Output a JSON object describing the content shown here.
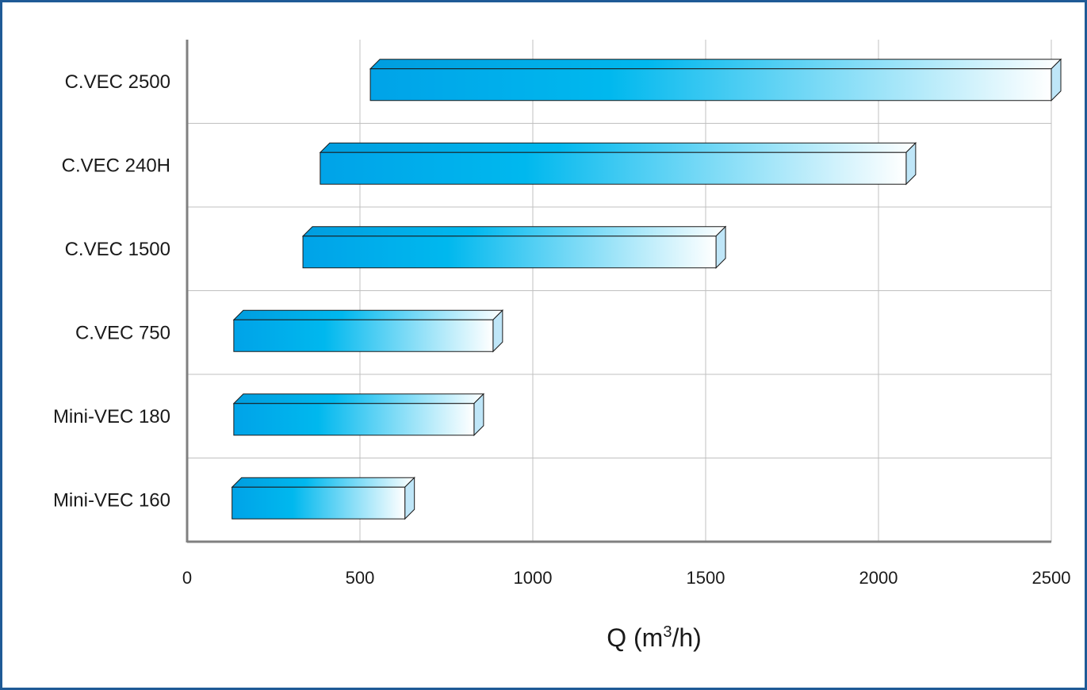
{
  "chart_data": {
    "type": "bar",
    "orientation": "horizontal",
    "range_bars": true,
    "categories": [
      "C.VEC 2500",
      "C.VEC 240H",
      "C.VEC 1500",
      "C.VEC 750",
      "Mini-VEC 180",
      "Mini-VEC 160"
    ],
    "ranges": [
      {
        "name": "C.VEC 2500",
        "min": 530,
        "max": 2500
      },
      {
        "name": "C.VEC 240H",
        "min": 385,
        "max": 2080
      },
      {
        "name": "C.VEC 1500",
        "min": 335,
        "max": 1530
      },
      {
        "name": "C.VEC 750",
        "min": 135,
        "max": 885
      },
      {
        "name": "Mini-VEC 180",
        "min": 135,
        "max": 830
      },
      {
        "name": "Mini-VEC 160",
        "min": 130,
        "max": 630
      }
    ],
    "xlim": [
      0,
      2500
    ],
    "xticks": [
      0,
      500,
      1000,
      1500,
      2000,
      2500
    ],
    "xlabel_main": "Q (m",
    "xlabel_sup": "3",
    "xlabel_tail": "/h)",
    "ylabel": "",
    "title": "",
    "grid": true,
    "legend": "none",
    "colors": {
      "bar_start": "#00a3e8",
      "bar_mid": "#00b8ee",
      "bar_end": "#ffffff",
      "bar_top": "#009ddf",
      "bar_side": "#bfe6f8",
      "frame": "#1f5a96",
      "grid": "#c0c0c0",
      "axis": "#808080"
    }
  }
}
